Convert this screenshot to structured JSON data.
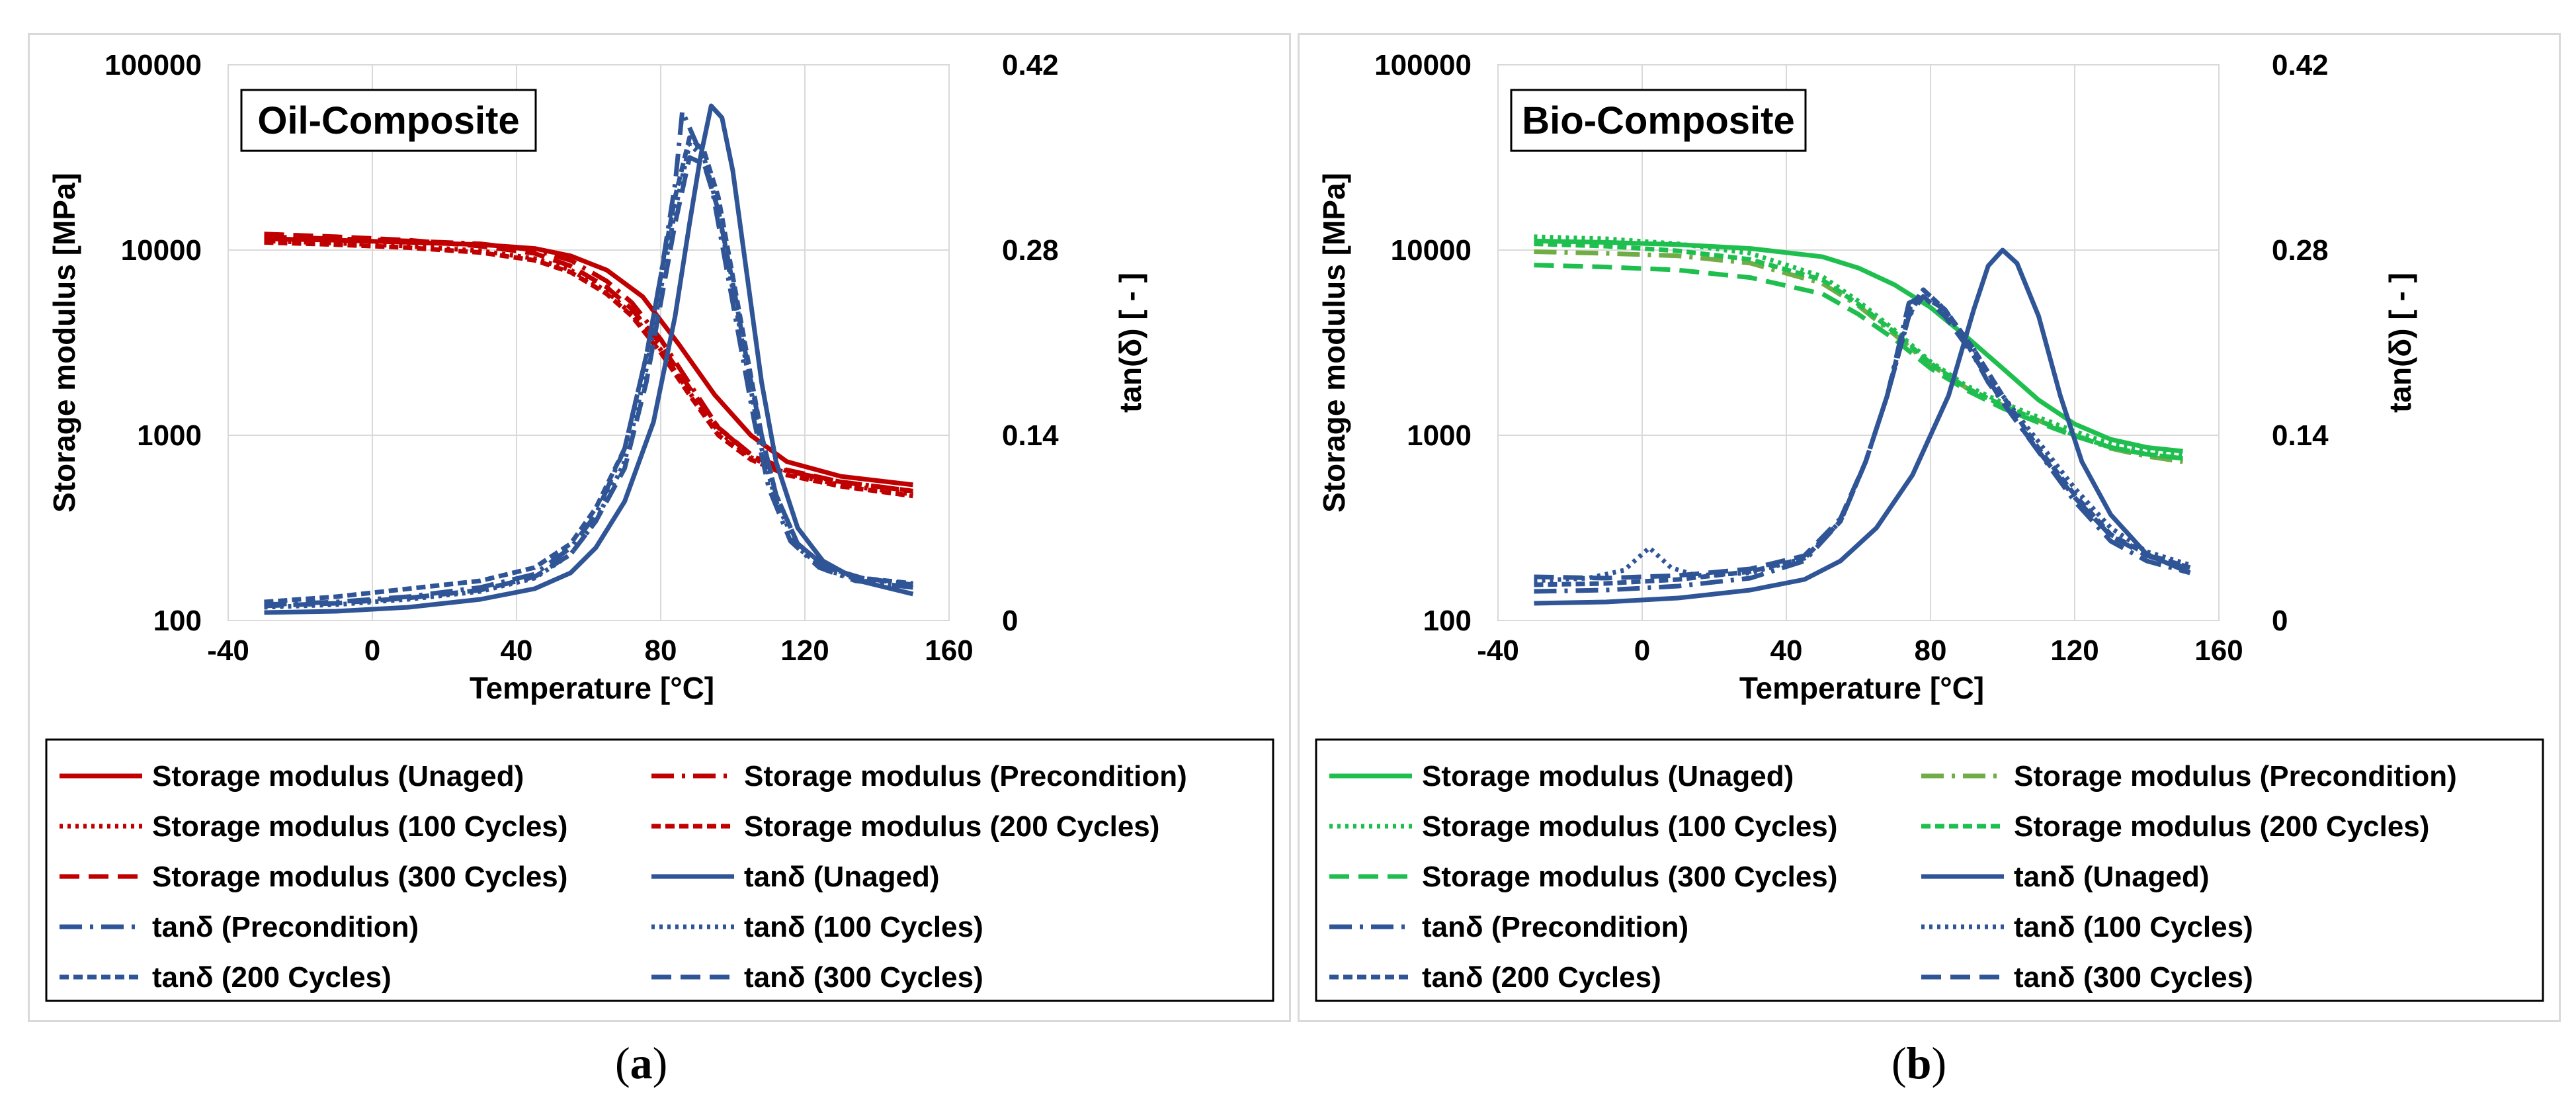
{
  "colors": {
    "oil_storage": "#c00000",
    "tan": "#2f5597",
    "bio_storage": "#1fbf4f",
    "bio_precondition": "#70ad47",
    "grid": "#d9d9d9"
  },
  "chart_data": [
    {
      "type": "line",
      "panel_label": "a",
      "title": "Oil-Composite",
      "xlabel": "Temperature [°C]",
      "ylabel": "Storage modulus [MPa]",
      "y2label": "tan(δ) [ - ]",
      "xlim": [
        -40,
        160
      ],
      "xticks": [
        "-40",
        "0",
        "40",
        "80",
        "120",
        "160"
      ],
      "ylim": [
        100,
        100000
      ],
      "yscale": "log",
      "yticks": [
        "100",
        "1000",
        "10000",
        "100000"
      ],
      "y2lim": [
        0,
        0.42
      ],
      "y2ticks": [
        "0",
        "0.14",
        "0.28",
        "0.42"
      ],
      "grid": true,
      "series": [
        {
          "name": "Storage modulus (Unaged)",
          "axis": "left",
          "style": "solid",
          "color": "#c00000",
          "x": [
            -30,
            -10,
            10,
            30,
            45,
            55,
            65,
            75,
            85,
            95,
            105,
            115,
            130,
            150
          ],
          "y": [
            11500,
            11300,
            11000,
            10700,
            10200,
            9300,
            7800,
            5600,
            3100,
            1650,
            1000,
            720,
            600,
            540
          ]
        },
        {
          "name": "Storage modulus (Precondition)",
          "axis": "left",
          "style": "dashdot",
          "color": "#c00000",
          "x": [
            -30,
            -10,
            10,
            30,
            45,
            55,
            65,
            72,
            80,
            88,
            96,
            105,
            115,
            130,
            150
          ],
          "y": [
            11800,
            11500,
            11200,
            10800,
            10000,
            8800,
            6800,
            5200,
            3300,
            1900,
            1100,
            780,
            640,
            560,
            500
          ]
        },
        {
          "name": "Storage modulus (100 Cycles)",
          "axis": "left",
          "style": "dotted",
          "color": "#c00000",
          "x": [
            -30,
            -10,
            10,
            30,
            45,
            55,
            65,
            72,
            80,
            88,
            96,
            105,
            115,
            130,
            150
          ],
          "y": [
            11200,
            10900,
            10500,
            9900,
            9000,
            7800,
            6000,
            4500,
            2900,
            1700,
            1050,
            760,
            620,
            540,
            480
          ]
        },
        {
          "name": "Storage modulus (200 Cycles)",
          "axis": "left",
          "style": "shortdash",
          "color": "#c00000",
          "x": [
            -30,
            -10,
            10,
            30,
            45,
            55,
            65,
            72,
            80,
            88,
            96,
            105,
            115,
            130,
            150
          ],
          "y": [
            11000,
            10700,
            10300,
            9700,
            8800,
            7600,
            5800,
            4400,
            2800,
            1650,
            1000,
            740,
            610,
            530,
            470
          ]
        },
        {
          "name": "Storage modulus (300 Cycles)",
          "axis": "left",
          "style": "longdash",
          "color": "#c00000",
          "x": [
            -30,
            -10,
            10,
            30,
            45,
            55,
            65,
            72,
            80,
            88,
            96,
            105,
            115,
            130,
            150
          ],
          "y": [
            12200,
            11800,
            11300,
            10500,
            9600,
            8200,
            6300,
            4800,
            3100,
            1800,
            1100,
            790,
            650,
            560,
            500
          ]
        },
        {
          "name": "tanδ (Unaged)",
          "axis": "right",
          "style": "solid",
          "color": "#2f5597",
          "x": [
            -30,
            -10,
            10,
            30,
            45,
            55,
            62,
            70,
            78,
            84,
            88,
            91,
            94,
            97,
            100,
            104,
            108,
            112,
            118,
            125,
            135,
            150
          ],
          "y": [
            0.006,
            0.007,
            0.01,
            0.016,
            0.024,
            0.036,
            0.055,
            0.09,
            0.15,
            0.23,
            0.3,
            0.35,
            0.389,
            0.38,
            0.34,
            0.26,
            0.18,
            0.12,
            0.07,
            0.045,
            0.03,
            0.02
          ]
        },
        {
          "name": "tanδ (Precondition)",
          "axis": "right",
          "style": "dashdot",
          "color": "#2f5597",
          "x": [
            -30,
            -10,
            10,
            30,
            45,
            55,
            62,
            70,
            76,
            80,
            84,
            86,
            90,
            94,
            98,
            102,
            106,
            110,
            116,
            124,
            134,
            150
          ],
          "y": [
            0.012,
            0.014,
            0.018,
            0.025,
            0.035,
            0.055,
            0.08,
            0.13,
            0.2,
            0.26,
            0.33,
            0.385,
            0.36,
            0.33,
            0.27,
            0.21,
            0.15,
            0.1,
            0.06,
            0.04,
            0.03,
            0.025
          ]
        },
        {
          "name": "tanδ (100 Cycles)",
          "axis": "right",
          "style": "dotted",
          "color": "#2f5597",
          "x": [
            -30,
            -10,
            10,
            30,
            45,
            55,
            62,
            70,
            76,
            80,
            84,
            88,
            92,
            96,
            100,
            104,
            108,
            112,
            118,
            126,
            136,
            150
          ],
          "y": [
            0.01,
            0.012,
            0.016,
            0.022,
            0.032,
            0.05,
            0.075,
            0.12,
            0.19,
            0.25,
            0.31,
            0.36,
            0.35,
            0.31,
            0.25,
            0.19,
            0.13,
            0.09,
            0.055,
            0.038,
            0.03,
            0.025
          ]
        },
        {
          "name": "tanδ (200 Cycles)",
          "axis": "right",
          "style": "shortdash",
          "color": "#2f5597",
          "x": [
            -30,
            -10,
            10,
            30,
            45,
            55,
            62,
            70,
            76,
            80,
            84,
            88,
            92,
            96,
            100,
            104,
            108,
            112,
            118,
            126,
            136,
            150
          ],
          "y": [
            0.014,
            0.018,
            0.024,
            0.03,
            0.04,
            0.058,
            0.085,
            0.13,
            0.2,
            0.26,
            0.32,
            0.365,
            0.355,
            0.32,
            0.26,
            0.2,
            0.14,
            0.095,
            0.058,
            0.04,
            0.032,
            0.028
          ]
        },
        {
          "name": "tanδ (300 Cycles)",
          "axis": "right",
          "style": "longdash",
          "color": "#2f5597",
          "x": [
            -30,
            -10,
            10,
            30,
            45,
            55,
            62,
            70,
            76,
            80,
            84,
            88,
            92,
            96,
            100,
            104,
            108,
            112,
            118,
            126,
            136,
            150
          ],
          "y": [
            0.011,
            0.013,
            0.017,
            0.023,
            0.033,
            0.05,
            0.075,
            0.115,
            0.18,
            0.24,
            0.3,
            0.35,
            0.345,
            0.31,
            0.255,
            0.195,
            0.14,
            0.095,
            0.058,
            0.04,
            0.032,
            0.027
          ]
        }
      ]
    },
    {
      "type": "line",
      "panel_label": "b",
      "title": "Bio-Composite",
      "xlabel": "Temperature [°C]",
      "ylabel": "Storage modulus [MPa]",
      "y2label": "tan(δ) [ - ]",
      "xlim": [
        -40,
        160
      ],
      "xticks": [
        "-40",
        "0",
        "40",
        "80",
        "120",
        "160"
      ],
      "ylim": [
        100,
        100000
      ],
      "yscale": "log",
      "yticks": [
        "100",
        "1000",
        "10000",
        "100000"
      ],
      "y2lim": [
        0,
        0.42
      ],
      "y2ticks": [
        "0",
        "0.14",
        "0.28",
        "0.42"
      ],
      "grid": true,
      "series": [
        {
          "name": "Storage modulus (Unaged)",
          "axis": "left",
          "style": "solid",
          "color": "#1fbf4f",
          "x": [
            -30,
            -10,
            10,
            30,
            50,
            60,
            70,
            80,
            90,
            100,
            110,
            120,
            130,
            140,
            150
          ],
          "y": [
            11200,
            11000,
            10700,
            10200,
            9200,
            8000,
            6500,
            4900,
            3400,
            2300,
            1550,
            1150,
            950,
            860,
            820
          ]
        },
        {
          "name": "Storage modulus (Precondition)",
          "axis": "left",
          "style": "dashdot",
          "color": "#70ad47",
          "x": [
            -30,
            -10,
            10,
            30,
            50,
            60,
            70,
            80,
            90,
            100,
            110,
            120,
            130,
            140,
            150
          ],
          "y": [
            9800,
            9600,
            9300,
            8500,
            6600,
            5000,
            3500,
            2400,
            1800,
            1450,
            1200,
            1000,
            850,
            770,
            720
          ]
        },
        {
          "name": "Storage modulus (100 Cycles)",
          "axis": "left",
          "style": "dotted",
          "color": "#1fbf4f",
          "x": [
            -30,
            -10,
            10,
            30,
            50,
            60,
            70,
            80,
            90,
            100,
            110,
            120,
            130,
            140,
            150
          ],
          "y": [
            11800,
            11500,
            10800,
            9600,
            7200,
            5300,
            3700,
            2500,
            1850,
            1500,
            1250,
            1050,
            900,
            820,
            780
          ]
        },
        {
          "name": "Storage modulus (200 Cycles)",
          "axis": "left",
          "style": "shortdash",
          "color": "#1fbf4f",
          "x": [
            -30,
            -10,
            10,
            30,
            50,
            60,
            70,
            80,
            90,
            100,
            110,
            120,
            130,
            140,
            150
          ],
          "y": [
            10800,
            10500,
            9900,
            8900,
            6900,
            5100,
            3600,
            2450,
            1800,
            1450,
            1200,
            1000,
            860,
            790,
            750
          ]
        },
        {
          "name": "Storage modulus (300 Cycles)",
          "axis": "left",
          "style": "longdash",
          "color": "#1fbf4f",
          "x": [
            -30,
            -10,
            10,
            30,
            50,
            60,
            70,
            80,
            90,
            100,
            110,
            120,
            130,
            140,
            150
          ],
          "y": [
            8300,
            8100,
            7800,
            7100,
            5800,
            4500,
            3300,
            2300,
            1750,
            1400,
            1170,
            990,
            860,
            790,
            750
          ]
        },
        {
          "name": "tanδ (Unaged)",
          "axis": "right",
          "style": "solid",
          "color": "#2f5597",
          "x": [
            -30,
            -10,
            10,
            30,
            45,
            55,
            65,
            75,
            85,
            92,
            96,
            100,
            104,
            110,
            116,
            122,
            130,
            140,
            152
          ],
          "y": [
            0.013,
            0.014,
            0.017,
            0.023,
            0.031,
            0.045,
            0.07,
            0.11,
            0.17,
            0.235,
            0.268,
            0.28,
            0.27,
            0.23,
            0.17,
            0.12,
            0.08,
            0.05,
            0.036
          ]
        },
        {
          "name": "tanδ (Precondition)",
          "axis": "right",
          "style": "dashdot",
          "color": "#2f5597",
          "x": [
            -30,
            -10,
            10,
            30,
            45,
            55,
            62,
            68,
            74,
            78,
            84,
            90,
            96,
            104,
            112,
            120,
            130,
            140,
            152
          ],
          "y": [
            0.022,
            0.023,
            0.026,
            0.032,
            0.045,
            0.075,
            0.12,
            0.17,
            0.24,
            0.245,
            0.235,
            0.21,
            0.18,
            0.15,
            0.12,
            0.09,
            0.06,
            0.045,
            0.036
          ]
        },
        {
          "name": "tanδ (100 Cycles)",
          "axis": "right",
          "style": "dotted",
          "color": "#2f5597",
          "x": [
            -30,
            -15,
            -5,
            2,
            8,
            15,
            30,
            45,
            55,
            62,
            68,
            74,
            78,
            84,
            92,
            100,
            110,
            120,
            130,
            140,
            152
          ],
          "y": [
            0.03,
            0.032,
            0.038,
            0.055,
            0.04,
            0.034,
            0.036,
            0.047,
            0.075,
            0.12,
            0.17,
            0.23,
            0.25,
            0.235,
            0.205,
            0.17,
            0.135,
            0.1,
            0.07,
            0.052,
            0.042
          ]
        },
        {
          "name": "tanδ (200 Cycles)",
          "axis": "right",
          "style": "shortdash",
          "color": "#2f5597",
          "x": [
            -30,
            -10,
            10,
            30,
            45,
            55,
            62,
            68,
            74,
            78,
            84,
            92,
            100,
            110,
            120,
            130,
            140,
            152
          ],
          "y": [
            0.027,
            0.028,
            0.031,
            0.037,
            0.047,
            0.075,
            0.12,
            0.17,
            0.235,
            0.25,
            0.235,
            0.205,
            0.17,
            0.13,
            0.095,
            0.065,
            0.05,
            0.04
          ]
        },
        {
          "name": "tanδ (300 Cycles)",
          "axis": "right",
          "style": "longdash",
          "color": "#2f5597",
          "x": [
            -30,
            -10,
            10,
            30,
            45,
            55,
            62,
            68,
            74,
            78,
            84,
            92,
            100,
            110,
            120,
            130,
            140,
            152
          ],
          "y": [
            0.033,
            0.032,
            0.034,
            0.039,
            0.049,
            0.077,
            0.12,
            0.17,
            0.23,
            0.245,
            0.23,
            0.2,
            0.165,
            0.128,
            0.093,
            0.064,
            0.049,
            0.039
          ]
        }
      ]
    }
  ]
}
